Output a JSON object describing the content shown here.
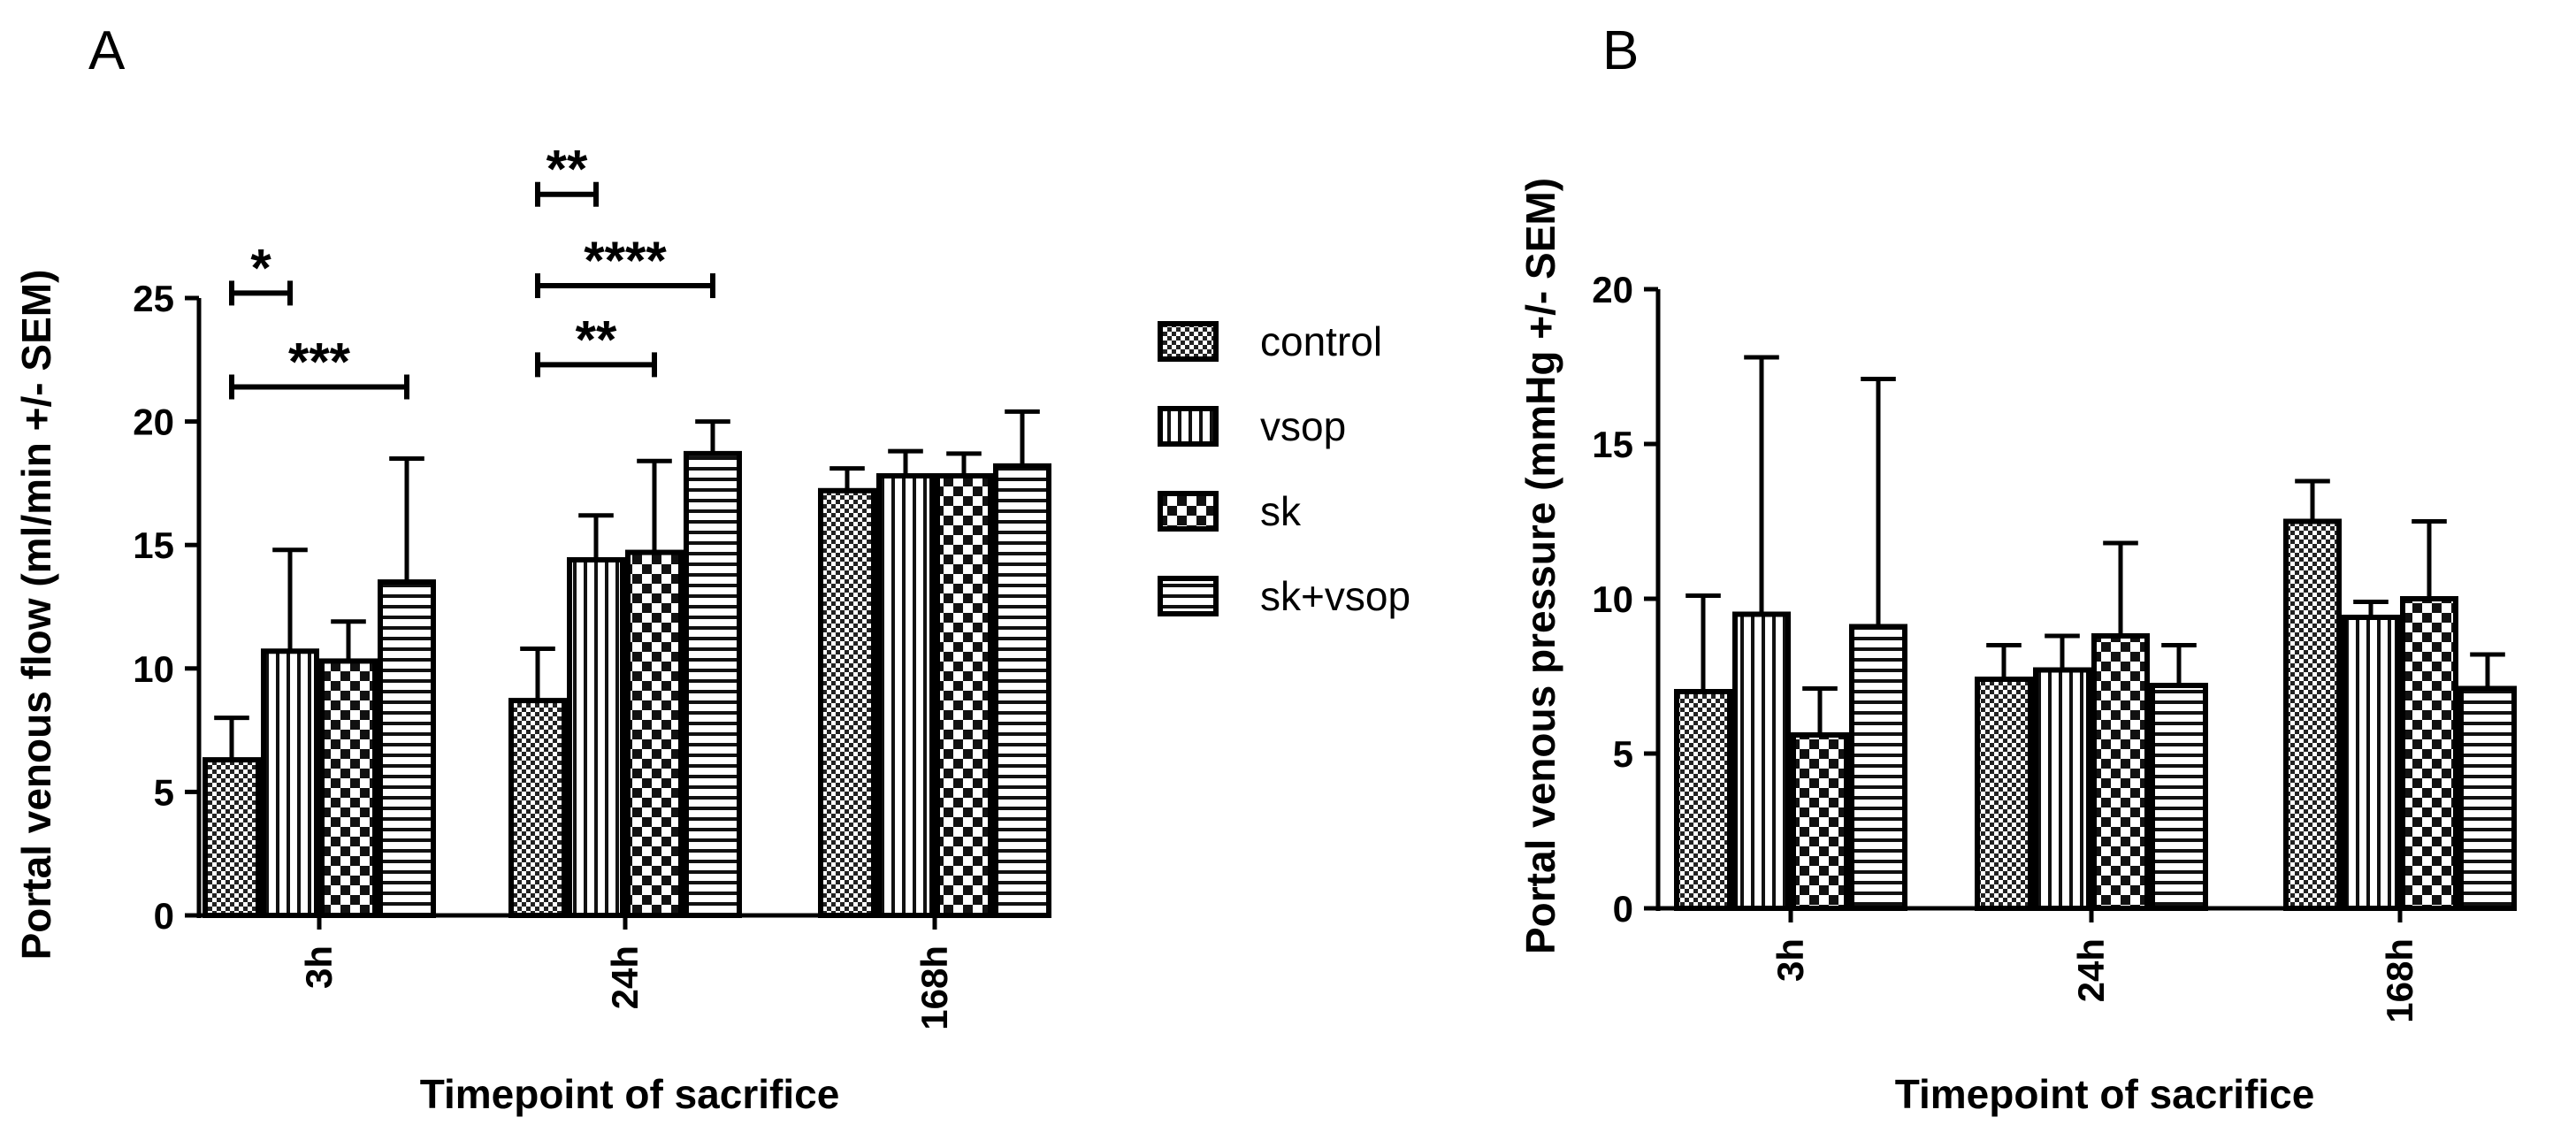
{
  "chart_data": [
    {
      "type": "bar",
      "panel_label": "A",
      "title": "",
      "categories": [
        "3h",
        "24h",
        "168h"
      ],
      "series": [
        {
          "name": "control",
          "values": [
            6.3,
            8.7,
            17.2
          ],
          "errors": [
            1.7,
            2.1,
            0.9
          ]
        },
        {
          "name": "vsop",
          "values": [
            10.7,
            14.4,
            17.8
          ],
          "errors": [
            4.1,
            1.8,
            1.0
          ]
        },
        {
          "name": "sk",
          "values": [
            10.3,
            14.7,
            17.8
          ],
          "errors": [
            1.6,
            3.7,
            0.9
          ]
        },
        {
          "name": "sk+vsop",
          "values": [
            13.5,
            18.7,
            18.2
          ],
          "errors": [
            5.0,
            1.3,
            2.2
          ]
        }
      ],
      "xlabel": "Timepoint of sacrifice",
      "ylabel": "Portal venous flow (ml/min +/- SEM)",
      "ylim": [
        0,
        25
      ],
      "yticks": [
        "0",
        "5",
        "10",
        "15",
        "20",
        "25"
      ],
      "significance": [
        {
          "label": "*",
          "group": "3h",
          "from": "control",
          "to": "vsop",
          "y": 25.2
        },
        {
          "label": "***",
          "group": "3h",
          "from": "control",
          "to": "sk+vsop",
          "y": 21.4
        },
        {
          "label": "**",
          "group": "24h",
          "from": "control",
          "to": "vsop",
          "y": 29.2
        },
        {
          "label": "****",
          "group": "24h",
          "from": "control",
          "to": "sk+vsop",
          "y": 25.5
        },
        {
          "label": "**",
          "group": "24h",
          "from": "control",
          "to": "sk",
          "y": 22.3
        }
      ]
    },
    {
      "type": "bar",
      "panel_label": "B",
      "title": "",
      "categories": [
        "3h",
        "24h",
        "168h"
      ],
      "series": [
        {
          "name": "control",
          "values": [
            7.0,
            7.4,
            12.5
          ],
          "errors": [
            3.1,
            1.1,
            1.3
          ]
        },
        {
          "name": "vsop",
          "values": [
            9.5,
            7.7,
            9.4
          ],
          "errors": [
            8.3,
            1.1,
            0.5
          ]
        },
        {
          "name": "sk",
          "values": [
            5.6,
            8.8,
            10.0
          ],
          "errors": [
            1.5,
            3.0,
            2.5
          ]
        },
        {
          "name": "sk+vsop",
          "values": [
            9.1,
            7.2,
            7.1
          ],
          "errors": [
            8.0,
            1.3,
            1.1
          ]
        }
      ],
      "xlabel": "Timepoint of sacrifice",
      "ylabel": "Portal venous pressure (mmHg +/- SEM)",
      "ylim": [
        0,
        20
      ],
      "yticks": [
        "0",
        "5",
        "10",
        "15",
        "20"
      ]
    }
  ],
  "legend": {
    "items": [
      {
        "name": "control",
        "pattern": "checker-small"
      },
      {
        "name": "vsop",
        "pattern": "vertical-lines"
      },
      {
        "name": "sk",
        "pattern": "checker-large"
      },
      {
        "name": "sk+vsop",
        "pattern": "horizontal-lines"
      }
    ]
  }
}
